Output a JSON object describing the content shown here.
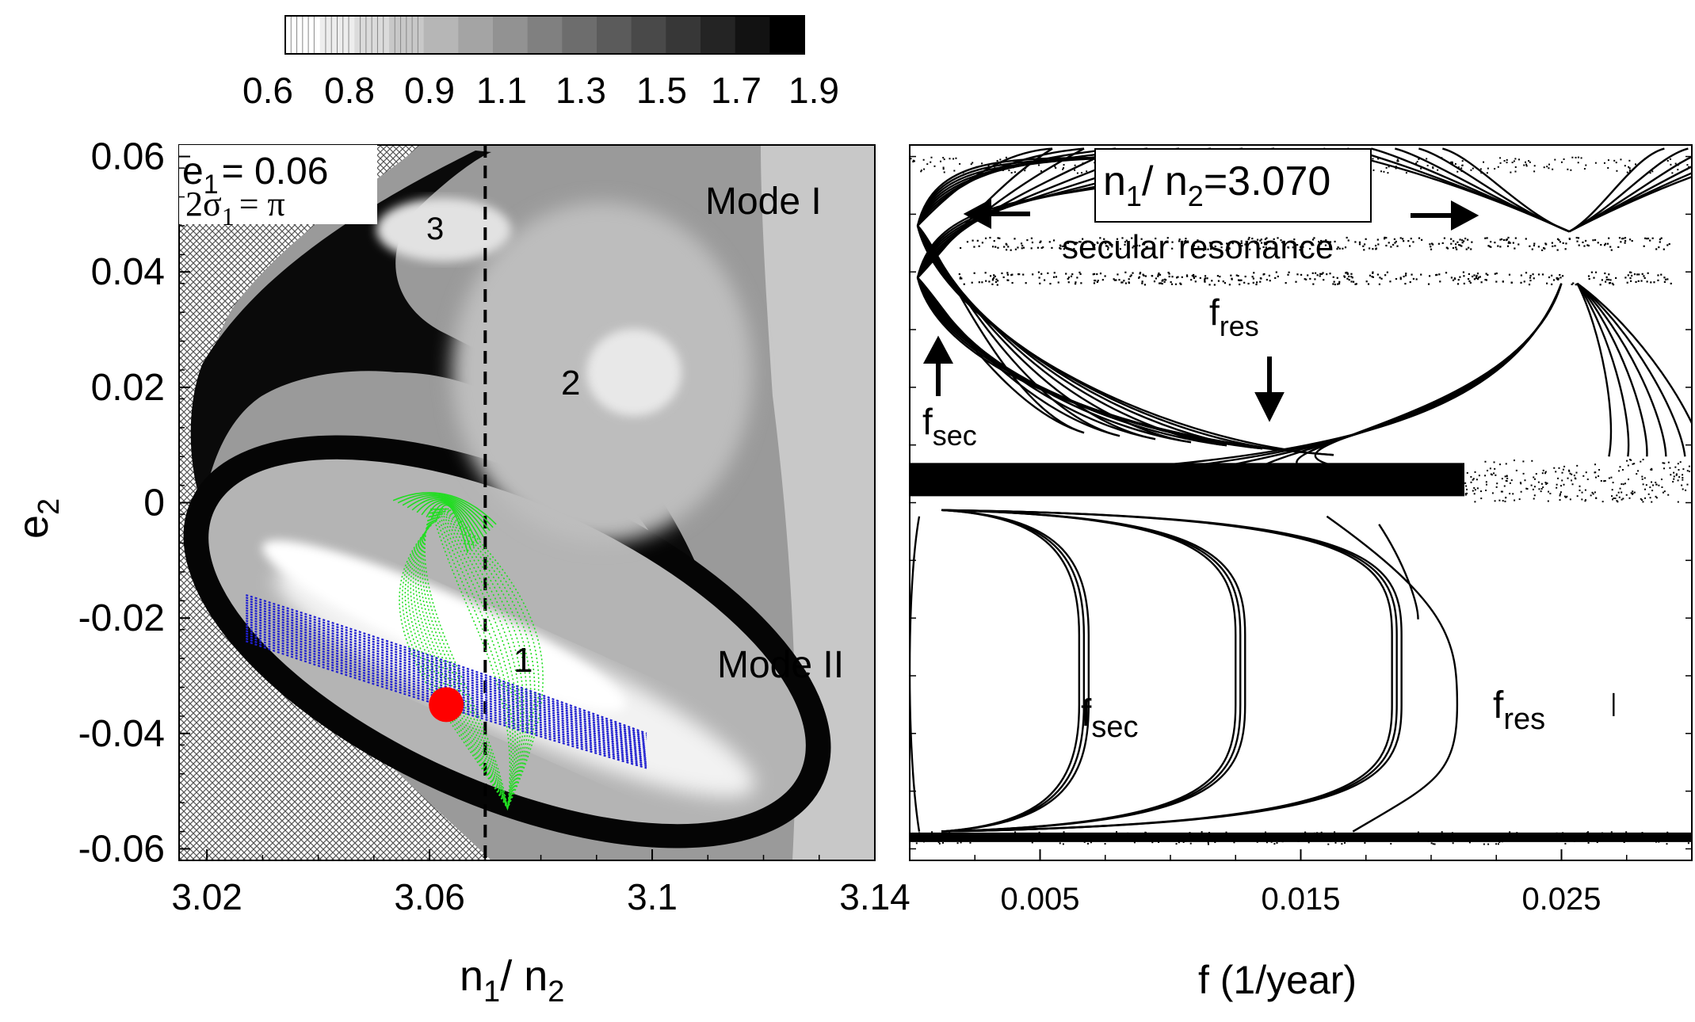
{
  "colorbar": {
    "tick_labels": [
      "0.6",
      "0.8",
      "0.9",
      "1.1",
      "1.3",
      "1.5",
      "1.7",
      "1.9"
    ],
    "levels": [
      0.6,
      0.7,
      0.8,
      0.85,
      0.9,
      1.0,
      1.1,
      1.2,
      1.3,
      1.4,
      1.5,
      1.6,
      1.7,
      1.8,
      1.9
    ],
    "gray_light": "#ffffff",
    "gray_dark": "#000000"
  },
  "chart_data": [
    {
      "type": "heatmap",
      "xlabel": {
        "main": "n",
        "sub1": "1",
        "mid": "/ n",
        "sub2": "2"
      },
      "ylabel": {
        "main": "e",
        "sub": "2"
      },
      "xlim": [
        3.015,
        3.14
      ],
      "ylim": [
        -0.062,
        0.062
      ],
      "x_ticks": [
        3.02,
        3.06,
        3.1,
        3.14
      ],
      "x_tick_labels": [
        "3.02",
        "3.06",
        "3.1",
        "3.14"
      ],
      "y_ticks": [
        0.06,
        0.04,
        0.02,
        0,
        -0.02,
        -0.04,
        -0.06
      ],
      "y_tick_labels": [
        "0.06",
        "0.04",
        "0.02",
        "0",
        "-0.02",
        "-0.04",
        "-0.06"
      ],
      "legend_box": {
        "line1": {
          "main": "e",
          "sub": "1",
          "rest": "= 0.06"
        },
        "line2": {
          "main": "2σ",
          "sub": "1",
          "rest": "= π"
        }
      },
      "annotations": {
        "mode1": "Mode I",
        "mode2": "Mode II",
        "region1": "1",
        "region2": "2",
        "region3": "3"
      },
      "dashed_line_x": 3.07,
      "red_point": {
        "x": 3.063,
        "y": -0.035,
        "color": "#ff0000"
      },
      "blue_band": {
        "color": "#1f1fd0",
        "upper": [
          [
            3.027,
            -0.016
          ],
          [
            3.06,
            -0.026
          ],
          [
            3.099,
            -0.04
          ]
        ],
        "lower": [
          [
            3.027,
            -0.024
          ],
          [
            3.06,
            -0.035
          ],
          [
            3.099,
            -0.046
          ]
        ]
      },
      "green_orbit": {
        "color": "#22dd22",
        "top": [
          3.062,
          -0.001
        ],
        "bottom": [
          3.074,
          -0.053
        ],
        "left": [
          3.058,
          -0.03
        ],
        "right": [
          3.08,
          -0.035
        ]
      }
    },
    {
      "type": "scatter",
      "xlabel": "f (1/year)",
      "xlim": [
        0,
        0.03
      ],
      "x_ticks": [
        0.005,
        0.015,
        0.025
      ],
      "x_tick_labels": [
        "0.005",
        "0.015",
        "0.025"
      ],
      "ylim": [
        -0.062,
        0.062
      ],
      "title_box": {
        "main": "n",
        "sub1": "1",
        "mid": "/ n",
        "sub2": "2",
        "rest": "=3.070"
      },
      "annotations": {
        "secular": "secular resonance",
        "fres_top": {
          "main": "f",
          "sub": "res"
        },
        "fsec_top": {
          "main": "f",
          "sub": "sec"
        },
        "fsec_bottom": {
          "main": "f",
          "sub": "sec"
        },
        "fres_bottom": {
          "main": "f",
          "sub": "res"
        }
      },
      "horizontal_bands_e2": [
        0.004,
        -0.058
      ],
      "lower_curve_f": [
        0.0065,
        0.0125,
        0.0185
      ],
      "lower_fres_peak": [
        0.021,
        -0.035
      ]
    }
  ]
}
